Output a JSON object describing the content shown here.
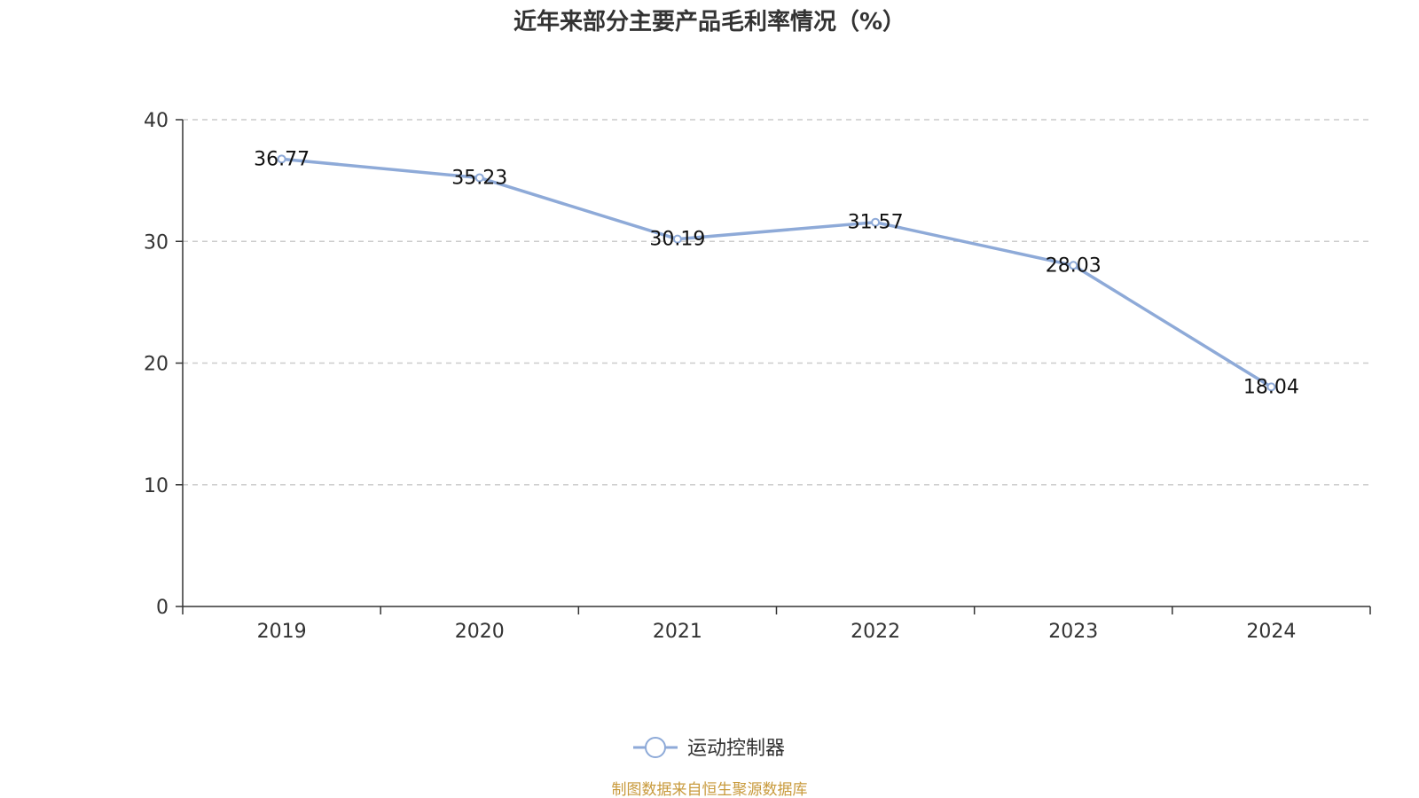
{
  "chart_data": {
    "type": "line",
    "title": "近年来部分主要产品毛利率情况（%）",
    "categories": [
      "2019",
      "2020",
      "2021",
      "2022",
      "2023",
      "2024"
    ],
    "series": [
      {
        "name": "运动控制器",
        "values": [
          36.77,
          35.23,
          30.19,
          31.57,
          28.03,
          18.04
        ],
        "color": "#8eaad8"
      }
    ],
    "data_labels": [
      "36.77",
      "35.23",
      "30.19",
      "31.57",
      "28.03",
      "18.04"
    ],
    "ylim": [
      0,
      40
    ],
    "yticks": [
      0,
      10,
      20,
      30,
      40
    ],
    "xlabel": "",
    "ylabel": "",
    "grid": true,
    "legend_position": "bottom-center"
  },
  "footer": {
    "source": "制图数据来自恒生聚源数据库",
    "source_color": "#c89a3c"
  }
}
